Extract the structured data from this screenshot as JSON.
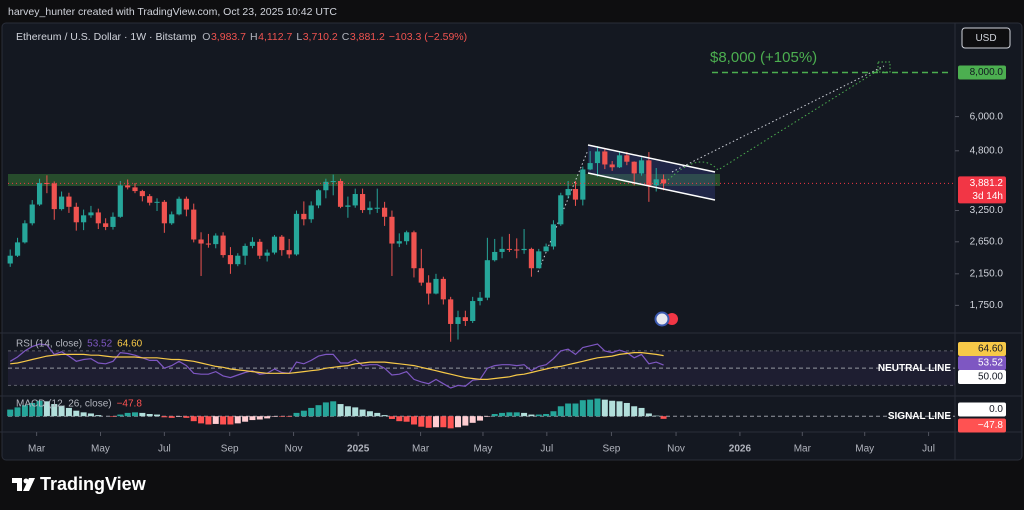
{
  "header": {
    "credit": "harvey_hunter created with TradingView.com, Oct 23, 2025 10:42 UTC",
    "currency": "USD"
  },
  "footer": {
    "brand": "TradingView"
  },
  "chart_data": [
    {
      "type": "candlestick",
      "title": "Ethereum / U.S. Dollar · 1W · Bitstamp",
      "readout": [
        "O",
        "3,983.7",
        "H",
        "4,112.7",
        "L",
        "3,710.2",
        "C",
        "3,881.2",
        "−103.3 (−2.59%)"
      ],
      "up_color": "#26a69a",
      "down_color": "#ef5350",
      "log_scale": true,
      "grid": false,
      "open": [
        2300,
        2420,
        2640,
        2990,
        3380,
        3890,
        3880,
        3280,
        3560,
        3330,
        3010,
        3150,
        3210,
        2990,
        2920,
        3120,
        3830,
        3780,
        3690,
        3570,
        3420,
        3440,
        2990,
        3170,
        3510,
        3270,
        2690,
        2620,
        2610,
        2760,
        2430,
        2290,
        2420,
        2580,
        2650,
        2420,
        2470,
        2740,
        2510,
        2440,
        3180,
        3070,
        3360,
        3710,
        3920,
        3940,
        3330,
        3360,
        3620,
        3260,
        3310,
        3310,
        3120,
        2620,
        2660,
        2820,
        2230,
        2030,
        1890,
        2080,
        1820,
        1550,
        1620,
        1580,
        1800,
        1840,
        2350,
        2480,
        2530,
        2520,
        2510,
        2530,
        2230,
        2490,
        2570,
        2970,
        3590,
        3740,
        3490,
        4250,
        4430,
        4780,
        4390,
        4310,
        4660,
        4470,
        4140,
        4510,
        3830,
        3983.7
      ],
      "high": [
        2520,
        2720,
        3050,
        3480,
        4000,
        4090,
        3930,
        3680,
        3650,
        3420,
        3270,
        3350,
        3290,
        3090,
        3210,
        3940,
        3980,
        3890,
        3720,
        3620,
        3520,
        3480,
        3230,
        3560,
        3560,
        3400,
        2820,
        2790,
        2800,
        2820,
        2560,
        2460,
        2620,
        2730,
        2700,
        2520,
        2770,
        2770,
        2700,
        3250,
        3450,
        3450,
        3740,
        4000,
        4110,
        4000,
        3560,
        3750,
        3750,
        3450,
        3750,
        3440,
        3250,
        2800,
        2850,
        2850,
        2530,
        2130,
        2150,
        2110,
        1850,
        1690,
        1690,
        1850,
        1910,
        2720,
        2700,
        2740,
        2790,
        2710,
        2880,
        2550,
        2530,
        2620,
        3050,
        3650,
        3940,
        3940,
        4330,
        4790,
        4950,
        4850,
        4490,
        4770,
        4760,
        4480,
        4600,
        4760,
        4290,
        4112.7
      ],
      "low": [
        2250,
        2400,
        2620,
        2950,
        3350,
        3640,
        3060,
        3250,
        3200,
        2850,
        2860,
        3100,
        2880,
        2860,
        2870,
        3100,
        3730,
        3640,
        3450,
        3360,
        3240,
        2810,
        2960,
        3150,
        3130,
        2640,
        2120,
        2550,
        2540,
        2390,
        2150,
        2260,
        2280,
        2540,
        2370,
        2330,
        2440,
        2420,
        2380,
        2420,
        2950,
        3000,
        3300,
        3520,
        3590,
        3300,
        3100,
        3310,
        3200,
        3170,
        3200,
        2940,
        2120,
        2560,
        2600,
        2100,
        1990,
        1760,
        1880,
        1760,
        1380,
        1400,
        1530,
        1560,
        1750,
        1810,
        2330,
        2380,
        2480,
        2380,
        2450,
        2110,
        2230,
        2490,
        2520,
        2940,
        3510,
        3350,
        3360,
        4230,
        4060,
        4260,
        4210,
        4290,
        4370,
        3830,
        4080,
        3440,
        3680,
        3710.2
      ],
      "close": [
        2420,
        2640,
        2990,
        3380,
        3890,
        3880,
        3280,
        3560,
        3330,
        3010,
        3150,
        3210,
        2990,
        2920,
        3120,
        3830,
        3780,
        3690,
        3570,
        3420,
        3440,
        2990,
        3170,
        3510,
        3270,
        2690,
        2620,
        2610,
        2760,
        2430,
        2290,
        2420,
        2580,
        2650,
        2420,
        2470,
        2740,
        2510,
        2440,
        3180,
        3070,
        3360,
        3710,
        3920,
        3940,
        3330,
        3360,
        3620,
        3260,
        3310,
        3310,
        3120,
        2620,
        2660,
        2820,
        2230,
        2030,
        1890,
        2080,
        1820,
        1550,
        1620,
        1580,
        1800,
        1840,
        2350,
        2480,
        2530,
        2520,
        2510,
        2530,
        2230,
        2490,
        2570,
        2970,
        3590,
        3740,
        3490,
        4250,
        4430,
        4780,
        4390,
        4310,
        4660,
        4470,
        4140,
        4510,
        3830,
        3984.5,
        3881.2
      ],
      "ylim": [
        1490,
        10700
      ],
      "yticks": [
        {
          "value": 6000,
          "label": "6,000.0"
        },
        {
          "value": 4800,
          "label": "4,800.0"
        },
        {
          "value": 3250,
          "label": "3,250.0"
        },
        {
          "value": 2650,
          "label": "2,650.0"
        },
        {
          "value": 2150,
          "label": "2,150.0"
        },
        {
          "value": 1750,
          "label": "1,750.0"
        }
      ],
      "xlim": [
        -0.3,
        128.7
      ],
      "xticks": [
        {
          "value": 3.6,
          "label": "Mar"
        },
        {
          "value": 12.3,
          "label": "May"
        },
        {
          "value": 21,
          "label": "Jul"
        },
        {
          "value": 29.9,
          "label": "Sep"
        },
        {
          "value": 38.6,
          "label": "Nov"
        },
        {
          "value": 47.4,
          "label": "2025"
        },
        {
          "value": 55.9,
          "label": "Mar"
        },
        {
          "value": 64.4,
          "label": "May"
        },
        {
          "value": 73.1,
          "label": "Jul"
        },
        {
          "value": 81.9,
          "label": "Sep"
        },
        {
          "value": 90.7,
          "label": "Nov"
        },
        {
          "value": 99.4,
          "label": "2026"
        },
        {
          "value": 107.9,
          "label": "Mar"
        },
        {
          "value": 116.4,
          "label": "May"
        },
        {
          "value": 125.1,
          "label": "Jul"
        }
      ],
      "target": {
        "value": 8000,
        "label": "8,000.0",
        "color": "#4caf50"
      },
      "annotation": "$8,000 (+105%)",
      "last": {
        "value": 3881.2,
        "label": "3,881.2",
        "countdown": "3d 14h",
        "color": "#f23645"
      }
    },
    {
      "type": "line",
      "title": "RSI (14, close)",
      "series": [
        {
          "color": "#7e57c2",
          "label": "53.52",
          "values": [
            58,
            63,
            70,
            75,
            78,
            77,
            66,
            69,
            64,
            58,
            60,
            61,
            56,
            55,
            58,
            68,
            67,
            65,
            62,
            59,
            59,
            50,
            53,
            58,
            53,
            44,
            43,
            43,
            46,
            41,
            39,
            42,
            45,
            47,
            43,
            44,
            49,
            45,
            44,
            57,
            55,
            59,
            64,
            66,
            66,
            56,
            56,
            60,
            53,
            54,
            54,
            50,
            42,
            43,
            46,
            37,
            34,
            32,
            37,
            32,
            27,
            30,
            29,
            36,
            37,
            50,
            53,
            54,
            54,
            53,
            54,
            47,
            52,
            54,
            61,
            70,
            72,
            66,
            74,
            76,
            78,
            70,
            68,
            71,
            68,
            62,
            66,
            55,
            57,
            53.52
          ]
        },
        {
          "color": "#f7c948",
          "label": "64.60",
          "values": [
            55,
            56,
            58,
            60,
            62,
            64,
            65,
            66,
            66,
            66,
            66,
            65,
            65,
            64,
            63,
            63,
            63,
            63,
            62,
            62,
            62,
            61,
            60,
            60,
            59,
            58,
            56,
            54,
            52,
            51,
            49,
            48,
            47,
            46,
            45,
            44,
            44,
            44,
            44,
            45,
            46,
            47,
            48,
            50,
            51,
            52,
            53,
            55,
            56,
            57,
            57,
            57,
            56,
            55,
            54,
            53,
            51,
            49,
            47,
            45,
            43,
            41,
            39,
            38,
            37,
            37,
            38,
            39,
            40,
            42,
            43,
            45,
            47,
            49,
            51,
            52,
            54,
            56,
            58,
            60,
            62,
            63,
            64,
            66,
            67,
            68,
            68,
            67,
            66,
            64.6
          ]
        }
      ],
      "ylim": [
        20,
        85
      ],
      "band": [
        30,
        70
      ],
      "yticks": [
        {
          "value": 50,
          "label": "50.00"
        }
      ],
      "line_label": "NEUTRAL LINE"
    },
    {
      "type": "bar",
      "title": "MACD (12, 26, close)",
      "readout": "−47.8",
      "values": [
        120,
        160,
        200,
        240,
        280,
        270,
        220,
        190,
        150,
        100,
        70,
        50,
        20,
        0,
        -10,
        30,
        60,
        70,
        60,
        40,
        30,
        -20,
        -30,
        -10,
        -30,
        -90,
        -130,
        -150,
        -140,
        -150,
        -150,
        -130,
        -100,
        -70,
        -60,
        -40,
        -10,
        -10,
        -10,
        60,
        100,
        150,
        200,
        250,
        270,
        220,
        180,
        160,
        120,
        90,
        60,
        20,
        -50,
        -90,
        -100,
        -150,
        -190,
        -210,
        -200,
        -200,
        -220,
        -200,
        -170,
        -120,
        -80,
        -10,
        40,
        60,
        70,
        70,
        60,
        30,
        30,
        40,
        90,
        180,
        230,
        230,
        290,
        300,
        320,
        300,
        280,
        270,
        240,
        180,
        150,
        50,
        10,
        -47.8
      ],
      "colors": {
        "up": "#26a69a",
        "up_fading": "#b2dfdb",
        "down": "#ff5252",
        "down_fading": "#ffcdd2"
      },
      "ylim": [
        -250,
        330
      ],
      "yticks": [
        {
          "value": 0,
          "label": "0.0"
        }
      ],
      "line_label": "SIGNAL LINE"
    }
  ]
}
